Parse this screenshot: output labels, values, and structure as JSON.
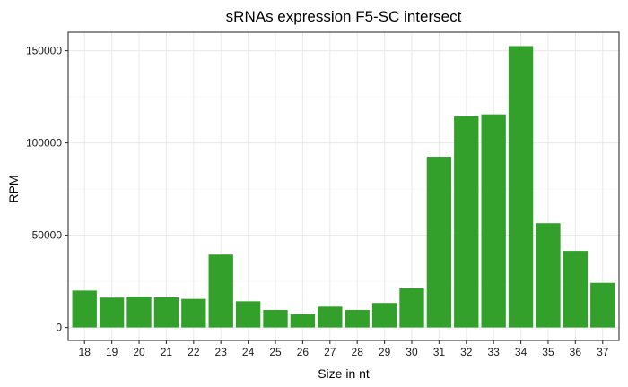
{
  "chart_data": {
    "type": "bar",
    "title": "sRNAs expression F5-SC intersect",
    "xlabel": "Size in nt",
    "ylabel": "RPM",
    "categories": [
      "18",
      "19",
      "20",
      "21",
      "22",
      "23",
      "24",
      "25",
      "26",
      "27",
      "28",
      "29",
      "30",
      "31",
      "32",
      "33",
      "34",
      "35",
      "36",
      "37"
    ],
    "values": [
      20000,
      16200,
      16700,
      16300,
      15500,
      39500,
      14200,
      9500,
      7200,
      11300,
      9500,
      13300,
      21200,
      92500,
      114500,
      115500,
      152500,
      56500,
      41500,
      24200
    ],
    "ylim": [
      -7000,
      160000
    ],
    "yticks": [
      0,
      50000,
      100000,
      150000
    ],
    "ytick_labels": [
      "0",
      "50000",
      "100000",
      "150000"
    ],
    "bar_color": "#33a02c",
    "grid": true,
    "legend": "none"
  }
}
